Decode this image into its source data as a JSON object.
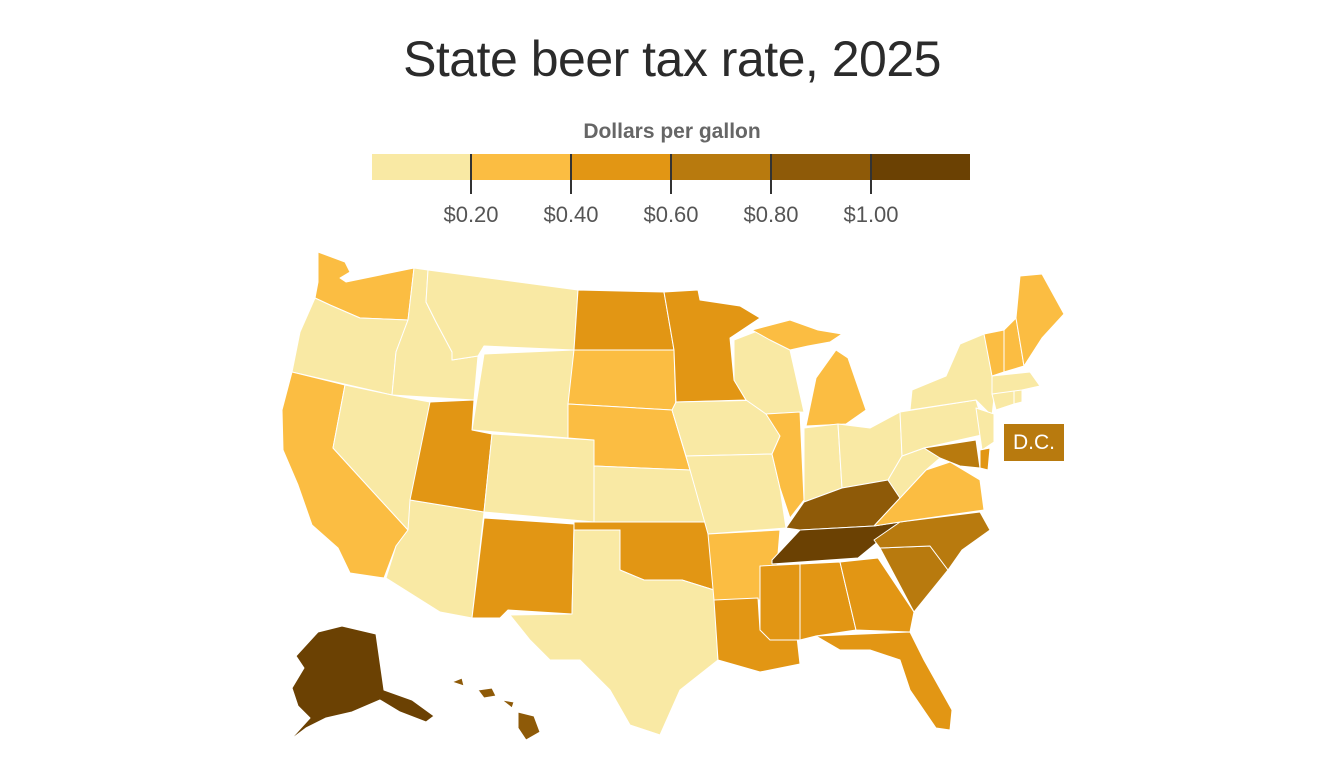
{
  "title": "State beer tax rate, 2025",
  "legend": {
    "title": "Dollars per gallon",
    "bins": [
      "#f9e9a4",
      "#fbbd42",
      "#e29614",
      "#b87a0e",
      "#8e5a08",
      "#6b4103"
    ],
    "ticks": [
      "$0.20",
      "$0.40",
      "$0.60",
      "$0.80",
      "$1.00"
    ]
  },
  "dc": {
    "label": "D.C.",
    "bin": 3
  },
  "states": [
    {
      "id": "WA",
      "bin": 1
    },
    {
      "id": "OR",
      "bin": 0
    },
    {
      "id": "CA",
      "bin": 1
    },
    {
      "id": "ID",
      "bin": 0
    },
    {
      "id": "NV",
      "bin": 0
    },
    {
      "id": "AZ",
      "bin": 0
    },
    {
      "id": "MT",
      "bin": 0
    },
    {
      "id": "WY",
      "bin": 0
    },
    {
      "id": "UT",
      "bin": 2
    },
    {
      "id": "CO",
      "bin": 0
    },
    {
      "id": "NM",
      "bin": 2
    },
    {
      "id": "ND",
      "bin": 2
    },
    {
      "id": "SD",
      "bin": 1
    },
    {
      "id": "NE",
      "bin": 1
    },
    {
      "id": "KS",
      "bin": 0
    },
    {
      "id": "OK",
      "bin": 2
    },
    {
      "id": "TX",
      "bin": 0
    },
    {
      "id": "MN",
      "bin": 2
    },
    {
      "id": "IA",
      "bin": 0
    },
    {
      "id": "MO",
      "bin": 0
    },
    {
      "id": "AR",
      "bin": 1
    },
    {
      "id": "LA",
      "bin": 2
    },
    {
      "id": "WI",
      "bin": 0
    },
    {
      "id": "IL",
      "bin": 1
    },
    {
      "id": "MI",
      "bin": 1
    },
    {
      "id": "IN",
      "bin": 0
    },
    {
      "id": "OH",
      "bin": 0
    },
    {
      "id": "KY",
      "bin": 4
    },
    {
      "id": "TN",
      "bin": 5
    },
    {
      "id": "MS",
      "bin": 2
    },
    {
      "id": "AL",
      "bin": 2
    },
    {
      "id": "GA",
      "bin": 2
    },
    {
      "id": "FL",
      "bin": 2
    },
    {
      "id": "SC",
      "bin": 3
    },
    {
      "id": "NC",
      "bin": 3
    },
    {
      "id": "VA",
      "bin": 1
    },
    {
      "id": "WV",
      "bin": 0
    },
    {
      "id": "PA",
      "bin": 0
    },
    {
      "id": "NY",
      "bin": 0
    },
    {
      "id": "NJ",
      "bin": 0
    },
    {
      "id": "DE",
      "bin": 2
    },
    {
      "id": "MD",
      "bin": 3
    },
    {
      "id": "CT",
      "bin": 0
    },
    {
      "id": "RI",
      "bin": 0
    },
    {
      "id": "MA",
      "bin": 0
    },
    {
      "id": "VT",
      "bin": 1
    },
    {
      "id": "NH",
      "bin": 1
    },
    {
      "id": "ME",
      "bin": 1
    },
    {
      "id": "AK",
      "bin": 5
    },
    {
      "id": "HI",
      "bin": 4
    }
  ]
}
